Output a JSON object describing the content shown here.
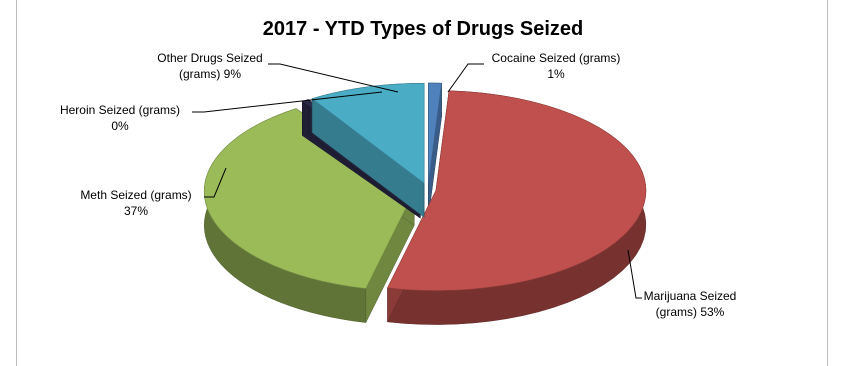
{
  "chart_data": {
    "type": "pie",
    "title": "2017 - YTD Types of Drugs Seized",
    "slices": [
      {
        "label_line1": "Cocaine Seized (grams)",
        "label_line2": "1%",
        "value": 1,
        "color": "#4f81bd"
      },
      {
        "label_line1": "Marijuana Seized",
        "label_line2": "(grams) 53%",
        "value": 53,
        "color": "#c0504d"
      },
      {
        "label_line1": "Meth Seized (grams)",
        "label_line2": "37%",
        "value": 37,
        "color": "#9bbb59"
      },
      {
        "label_line1": "Heroin Seized (grams)",
        "label_line2": "0%",
        "value": 0,
        "color": "#2c2a4a"
      },
      {
        "label_line1": "Other Drugs Seized",
        "label_line2": "(grams) 9%",
        "value": 9,
        "color": "#4bacc6"
      }
    ]
  }
}
